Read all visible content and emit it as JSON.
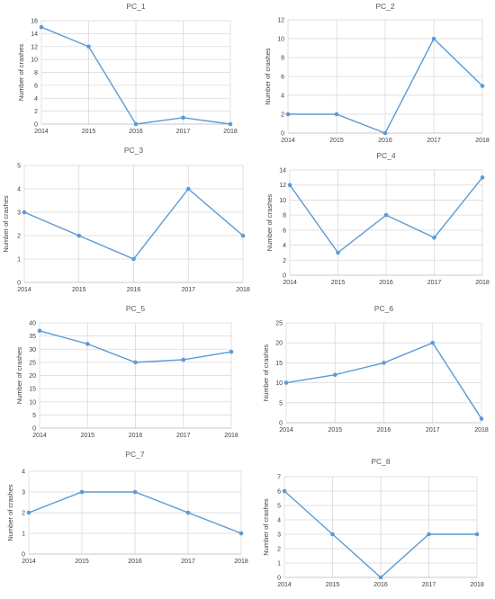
{
  "colors": {
    "series": "#5b9bd5",
    "grid": "#d9d9d9"
  },
  "chart_data": [
    {
      "type": "line",
      "title": "PC_1",
      "ylabel": "Number of crashes",
      "x": [
        "2014",
        "2015",
        "2016",
        "2017",
        "2018"
      ],
      "values": [
        15,
        12,
        0,
        1,
        0
      ],
      "ylim": [
        0,
        16
      ],
      "ystep": 2,
      "grid": true
    },
    {
      "type": "line",
      "title": "PC_2",
      "ylabel": "Number of crashes",
      "x": [
        "2014",
        "2015",
        "2016",
        "2017",
        "2018"
      ],
      "values": [
        2,
        2,
        0,
        10,
        5
      ],
      "ylim": [
        0,
        12
      ],
      "ystep": 2,
      "grid": true
    },
    {
      "type": "line",
      "title": "PC_3",
      "ylabel": "Number of crashes",
      "x": [
        "2014",
        "2015",
        "2016",
        "2017",
        "2018"
      ],
      "values": [
        3,
        2,
        1,
        4,
        2
      ],
      "ylim": [
        0,
        5
      ],
      "ystep": 1,
      "grid": true
    },
    {
      "type": "line",
      "title": "PC_4",
      "ylabel": "Number of crashes",
      "x": [
        "2014",
        "2015",
        "2016",
        "2017",
        "2018"
      ],
      "values": [
        12,
        3,
        8,
        5,
        13
      ],
      "ylim": [
        0,
        14
      ],
      "ystep": 2,
      "grid": true
    },
    {
      "type": "line",
      "title": "PC_5",
      "ylabel": "Number of crashes",
      "x": [
        "2014",
        "2015",
        "2016",
        "2017",
        "2018"
      ],
      "values": [
        37,
        32,
        25,
        26,
        29
      ],
      "ylim": [
        0,
        40
      ],
      "ystep": 5,
      "grid": true
    },
    {
      "type": "line",
      "title": "PC_6",
      "ylabel": "Number of crashes",
      "x": [
        "2014",
        "2015",
        "2016",
        "2017",
        "2018"
      ],
      "values": [
        10,
        12,
        15,
        20,
        1
      ],
      "ylim": [
        0,
        25
      ],
      "ystep": 5,
      "grid": true
    },
    {
      "type": "line",
      "title": "PC_7",
      "ylabel": "Number of crashes",
      "x": [
        "2014",
        "2015",
        "2016",
        "2017",
        "2018"
      ],
      "values": [
        2,
        3,
        3,
        2,
        1
      ],
      "ylim": [
        0,
        4
      ],
      "ystep": 1,
      "grid": true
    },
    {
      "type": "line",
      "title": "PC_8",
      "ylabel": "Number of crashes",
      "x": [
        "2014",
        "2015",
        "2016",
        "2017",
        "2018"
      ],
      "values": [
        6,
        3,
        0,
        3,
        3
      ],
      "ylim": [
        0,
        7
      ],
      "ystep": 1,
      "grid": true
    }
  ]
}
